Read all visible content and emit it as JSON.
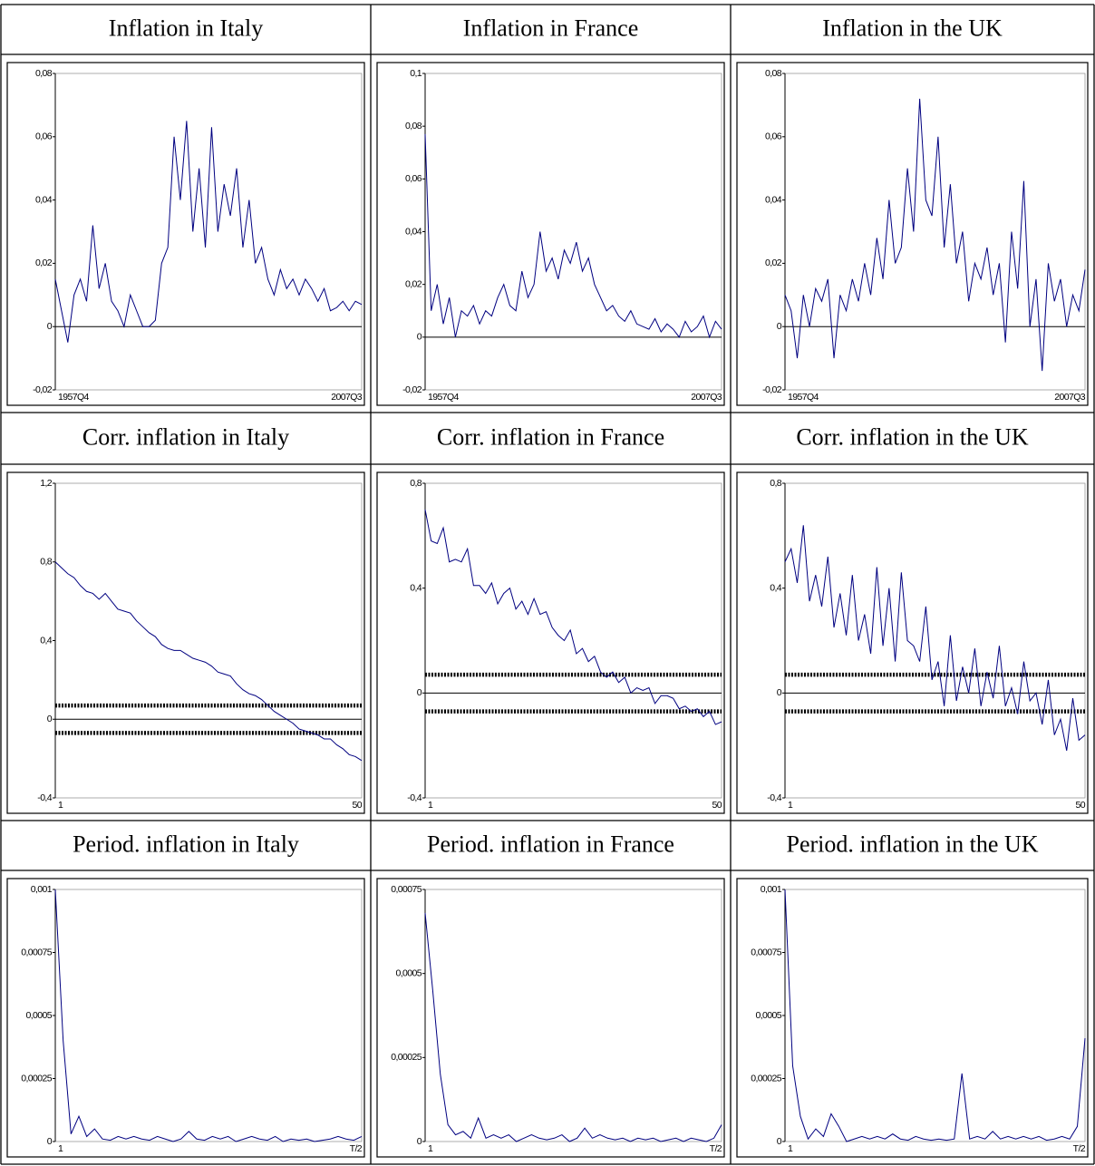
{
  "chart_data": [
    {
      "type": "line",
      "title": "Inflation in Italy",
      "color": "#000080",
      "zero_line": true,
      "ylim": [
        -0.02,
        0.08
      ],
      "yticks": [
        {
          "value": -0.02,
          "label": "-0,02"
        },
        0,
        {
          "value": 0.02,
          "label": "0,02"
        },
        {
          "value": 0.04,
          "label": "0,04"
        },
        {
          "value": 0.06,
          "label": "0,06"
        },
        {
          "value": 0.08,
          "label": "0,08"
        }
      ],
      "categories": [
        "1957Q4",
        null,
        null,
        null,
        null,
        null,
        null,
        null,
        null,
        null,
        null,
        null,
        null,
        null,
        null,
        null,
        null,
        null,
        null,
        null,
        null,
        null,
        null,
        null,
        null,
        null,
        null,
        null,
        null,
        null,
        null,
        null,
        null,
        null,
        null,
        null,
        null,
        null,
        null,
        null,
        null,
        null,
        null,
        null,
        null,
        null,
        null,
        null,
        null,
        "2007Q3"
      ],
      "values": [
        0.015,
        0.005,
        -0.005,
        0.01,
        0.015,
        0.008,
        0.032,
        0.012,
        0.02,
        0.008,
        0.005,
        0.0,
        0.01,
        0.005,
        0.0,
        0.0,
        0.002,
        0.02,
        0.025,
        0.06,
        0.04,
        0.065,
        0.03,
        0.05,
        0.025,
        0.063,
        0.03,
        0.045,
        0.035,
        0.05,
        0.025,
        0.04,
        0.02,
        0.025,
        0.015,
        0.01,
        0.018,
        0.012,
        0.015,
        0.01,
        0.015,
        0.012,
        0.008,
        0.012,
        0.005,
        0.006,
        0.008,
        0.005,
        0.008,
        0.007
      ]
    },
    {
      "type": "line",
      "title": "Inflation in France",
      "color": "#000080",
      "zero_line": true,
      "ylim": [
        -0.02,
        0.1
      ],
      "yticks": [
        {
          "value": -0.02,
          "label": "-0,02"
        },
        0,
        {
          "value": 0.02,
          "label": "0,02"
        },
        {
          "value": 0.04,
          "label": "0,04"
        },
        {
          "value": 0.06,
          "label": "0,06"
        },
        {
          "value": 0.08,
          "label": "0,08"
        },
        {
          "value": 0.1,
          "label": "0,1"
        }
      ],
      "categories": [
        "1957Q4",
        null,
        null,
        null,
        null,
        null,
        null,
        null,
        null,
        null,
        null,
        null,
        null,
        null,
        null,
        null,
        null,
        null,
        null,
        null,
        null,
        null,
        null,
        null,
        null,
        null,
        null,
        null,
        null,
        null,
        null,
        null,
        null,
        null,
        null,
        null,
        null,
        null,
        null,
        null,
        null,
        null,
        null,
        null,
        null,
        null,
        null,
        null,
        null,
        "2007Q3"
      ],
      "values": [
        0.077,
        0.01,
        0.02,
        0.005,
        0.015,
        0.0,
        0.01,
        0.008,
        0.012,
        0.005,
        0.01,
        0.008,
        0.015,
        0.02,
        0.012,
        0.01,
        0.025,
        0.015,
        0.02,
        0.04,
        0.025,
        0.03,
        0.022,
        0.033,
        0.028,
        0.036,
        0.025,
        0.03,
        0.02,
        0.015,
        0.01,
        0.012,
        0.008,
        0.006,
        0.01,
        0.005,
        0.004,
        0.003,
        0.007,
        0.002,
        0.005,
        0.003,
        0.0,
        0.006,
        0.002,
        0.004,
        0.008,
        0.0,
        0.006,
        0.003
      ]
    },
    {
      "type": "line",
      "title": "Inflation in the UK",
      "color": "#000080",
      "zero_line": true,
      "ylim": [
        -0.02,
        0.08
      ],
      "yticks": [
        {
          "value": -0.02,
          "label": "-0,02"
        },
        0,
        {
          "value": 0.02,
          "label": "0,02"
        },
        {
          "value": 0.04,
          "label": "0,04"
        },
        {
          "value": 0.06,
          "label": "0,06"
        },
        {
          "value": 0.08,
          "label": "0,08"
        }
      ],
      "categories": [
        "1957Q4",
        null,
        null,
        null,
        null,
        null,
        null,
        null,
        null,
        null,
        null,
        null,
        null,
        null,
        null,
        null,
        null,
        null,
        null,
        null,
        null,
        null,
        null,
        null,
        null,
        null,
        null,
        null,
        null,
        null,
        null,
        null,
        null,
        null,
        null,
        null,
        null,
        null,
        null,
        null,
        null,
        null,
        null,
        null,
        null,
        null,
        null,
        null,
        null,
        "2007Q3"
      ],
      "values": [
        0.01,
        0.005,
        -0.01,
        0.01,
        0.0,
        0.012,
        0.008,
        0.015,
        -0.01,
        0.01,
        0.005,
        0.015,
        0.008,
        0.02,
        0.01,
        0.028,
        0.015,
        0.04,
        0.02,
        0.025,
        0.05,
        0.03,
        0.072,
        0.04,
        0.035,
        0.06,
        0.025,
        0.045,
        0.02,
        0.03,
        0.008,
        0.02,
        0.015,
        0.025,
        0.01,
        0.02,
        -0.005,
        0.03,
        0.012,
        0.046,
        0.0,
        0.015,
        -0.014,
        0.02,
        0.008,
        0.015,
        0.0,
        0.01,
        0.005,
        0.018
      ]
    },
    {
      "type": "line",
      "title": "Corr. inflation in Italy",
      "color": "#000080",
      "zero_line": true,
      "bands": [
        0.07,
        -0.07
      ],
      "ylim": [
        -0.4,
        1.2
      ],
      "yticks": [
        {
          "value": -0.4,
          "label": "-0,4"
        },
        0,
        {
          "value": 0.4,
          "label": "0,4"
        },
        {
          "value": 0.8,
          "label": "0,8"
        },
        {
          "value": 1.2,
          "label": "1,2"
        }
      ],
      "categories": [
        "1",
        null,
        null,
        null,
        null,
        null,
        null,
        null,
        null,
        null,
        null,
        null,
        null,
        null,
        null,
        null,
        null,
        null,
        null,
        null,
        null,
        null,
        null,
        null,
        null,
        null,
        null,
        null,
        null,
        null,
        null,
        null,
        null,
        null,
        null,
        null,
        null,
        null,
        null,
        null,
        null,
        null,
        null,
        null,
        null,
        null,
        null,
        null,
        null,
        "50"
      ],
      "values": [
        0.8,
        0.77,
        0.74,
        0.72,
        0.68,
        0.65,
        0.64,
        0.61,
        0.64,
        0.6,
        0.56,
        0.55,
        0.54,
        0.5,
        0.47,
        0.44,
        0.42,
        0.38,
        0.36,
        0.35,
        0.35,
        0.33,
        0.31,
        0.3,
        0.29,
        0.27,
        0.24,
        0.23,
        0.22,
        0.18,
        0.15,
        0.13,
        0.12,
        0.1,
        0.07,
        0.04,
        0.02,
        0.0,
        -0.02,
        -0.05,
        -0.06,
        -0.07,
        -0.08,
        -0.1,
        -0.1,
        -0.13,
        -0.15,
        -0.18,
        -0.19,
        -0.21
      ]
    },
    {
      "type": "line",
      "title": "Corr. inflation in France",
      "color": "#000080",
      "zero_line": true,
      "bands": [
        0.07,
        -0.07
      ],
      "ylim": [
        -0.4,
        0.8
      ],
      "yticks": [
        {
          "value": -0.4,
          "label": "-0,4"
        },
        0,
        {
          "value": 0.4,
          "label": "0,4"
        },
        {
          "value": 0.8,
          "label": "0,8"
        }
      ],
      "categories": [
        "1",
        null,
        null,
        null,
        null,
        null,
        null,
        null,
        null,
        null,
        null,
        null,
        null,
        null,
        null,
        null,
        null,
        null,
        null,
        null,
        null,
        null,
        null,
        null,
        null,
        null,
        null,
        null,
        null,
        null,
        null,
        null,
        null,
        null,
        null,
        null,
        null,
        null,
        null,
        null,
        null,
        null,
        null,
        null,
        null,
        null,
        null,
        null,
        null,
        "50"
      ],
      "values": [
        0.7,
        0.58,
        0.57,
        0.63,
        0.5,
        0.51,
        0.5,
        0.55,
        0.41,
        0.41,
        0.38,
        0.42,
        0.34,
        0.38,
        0.4,
        0.32,
        0.35,
        0.3,
        0.36,
        0.3,
        0.31,
        0.25,
        0.22,
        0.2,
        0.24,
        0.15,
        0.17,
        0.12,
        0.14,
        0.08,
        0.06,
        0.08,
        0.04,
        0.06,
        0.0,
        0.02,
        0.01,
        0.02,
        -0.04,
        -0.01,
        -0.01,
        -0.02,
        -0.06,
        -0.05,
        -0.07,
        -0.06,
        -0.09,
        -0.07,
        -0.12,
        -0.11
      ]
    },
    {
      "type": "line",
      "title": "Corr. inflation in the UK",
      "color": "#000080",
      "zero_line": true,
      "bands": [
        0.07,
        -0.07
      ],
      "ylim": [
        -0.4,
        0.8
      ],
      "yticks": [
        {
          "value": -0.4,
          "label": "-0,4"
        },
        0,
        {
          "value": 0.4,
          "label": "0,4"
        },
        {
          "value": 0.8,
          "label": "0,8"
        }
      ],
      "categories": [
        "1",
        null,
        null,
        null,
        null,
        null,
        null,
        null,
        null,
        null,
        null,
        null,
        null,
        null,
        null,
        null,
        null,
        null,
        null,
        null,
        null,
        null,
        null,
        null,
        null,
        null,
        null,
        null,
        null,
        null,
        null,
        null,
        null,
        null,
        null,
        null,
        null,
        null,
        null,
        null,
        null,
        null,
        null,
        null,
        null,
        null,
        null,
        null,
        null,
        "50"
      ],
      "values": [
        0.5,
        0.55,
        0.42,
        0.64,
        0.35,
        0.45,
        0.33,
        0.52,
        0.25,
        0.38,
        0.22,
        0.45,
        0.2,
        0.3,
        0.15,
        0.48,
        0.18,
        0.4,
        0.12,
        0.46,
        0.2,
        0.18,
        0.12,
        0.33,
        0.05,
        0.12,
        -0.05,
        0.22,
        -0.03,
        0.1,
        0.0,
        0.17,
        -0.05,
        0.08,
        -0.02,
        0.18,
        -0.05,
        0.02,
        -0.08,
        0.12,
        -0.03,
        0.0,
        -0.12,
        0.05,
        -0.16,
        -0.1,
        -0.22,
        -0.02,
        -0.18,
        -0.16
      ]
    },
    {
      "type": "line",
      "title": "Period. inflation in Italy",
      "color": "#000080",
      "ylim": [
        0,
        0.001
      ],
      "yticks": [
        0,
        {
          "value": 0.00025,
          "label": "0,00025"
        },
        {
          "value": 0.0005,
          "label": "0,0005"
        },
        {
          "value": 0.00075,
          "label": "0,00075"
        },
        {
          "value": 0.001,
          "label": "0,001"
        }
      ],
      "categories": [
        "1",
        null,
        null,
        null,
        null,
        null,
        null,
        null,
        null,
        null,
        null,
        null,
        null,
        null,
        null,
        null,
        null,
        null,
        null,
        null,
        null,
        null,
        null,
        null,
        null,
        null,
        null,
        null,
        null,
        null,
        null,
        null,
        null,
        null,
        null,
        null,
        null,
        null,
        null,
        "T/2"
      ],
      "values": [
        0.001,
        0.0004,
        3e-05,
        0.0001,
        2e-05,
        5e-05,
        1e-05,
        5e-06,
        2e-05,
        1e-05,
        2e-05,
        1e-05,
        5e-06,
        2e-05,
        1e-05,
        0,
        1e-05,
        4e-05,
        1e-05,
        5e-06,
        2e-05,
        1e-05,
        2e-05,
        0,
        1e-05,
        2e-05,
        1e-05,
        5e-06,
        2e-05,
        0,
        1e-05,
        5e-06,
        1e-05,
        0,
        5e-06,
        1e-05,
        2e-05,
        1e-05,
        5e-06,
        2e-05
      ]
    },
    {
      "type": "line",
      "title": "Period. inflation in France",
      "color": "#000080",
      "ylim": [
        0,
        0.00075
      ],
      "yticks": [
        0,
        {
          "value": 0.00025,
          "label": "0,00025"
        },
        {
          "value": 0.0005,
          "label": "0,0005"
        },
        {
          "value": 0.00075,
          "label": "0,00075"
        }
      ],
      "categories": [
        "1",
        null,
        null,
        null,
        null,
        null,
        null,
        null,
        null,
        null,
        null,
        null,
        null,
        null,
        null,
        null,
        null,
        null,
        null,
        null,
        null,
        null,
        null,
        null,
        null,
        null,
        null,
        null,
        null,
        null,
        null,
        null,
        null,
        null,
        null,
        null,
        null,
        null,
        null,
        "T/2"
      ],
      "values": [
        0.00068,
        0.00045,
        0.0002,
        5e-05,
        2e-05,
        3e-05,
        1e-05,
        7e-05,
        1e-05,
        2e-05,
        1e-05,
        2e-05,
        0,
        1e-05,
        2e-05,
        1e-05,
        5e-06,
        1e-05,
        2e-05,
        0,
        1e-05,
        4e-05,
        1e-05,
        2e-05,
        1e-05,
        5e-06,
        1e-05,
        0,
        1e-05,
        5e-06,
        1e-05,
        0,
        5e-06,
        1e-05,
        0,
        1e-05,
        5e-06,
        0,
        1e-05,
        5e-05
      ]
    },
    {
      "type": "line",
      "title": "Period. inflation in the UK",
      "color": "#000080",
      "ylim": [
        0,
        0.001
      ],
      "yticks": [
        0,
        {
          "value": 0.00025,
          "label": "0,00025"
        },
        {
          "value": 0.0005,
          "label": "0,0005"
        },
        {
          "value": 0.00075,
          "label": "0,00075"
        },
        {
          "value": 0.001,
          "label": "0,001"
        }
      ],
      "categories": [
        "1",
        null,
        null,
        null,
        null,
        null,
        null,
        null,
        null,
        null,
        null,
        null,
        null,
        null,
        null,
        null,
        null,
        null,
        null,
        null,
        null,
        null,
        null,
        null,
        null,
        null,
        null,
        null,
        null,
        null,
        null,
        null,
        null,
        null,
        null,
        null,
        null,
        null,
        null,
        "T/2"
      ],
      "values": [
        0.001,
        0.0003,
        0.0001,
        1e-05,
        5e-05,
        2e-05,
        0.00011,
        6e-05,
        0,
        1e-05,
        2e-05,
        1e-05,
        2e-05,
        1e-05,
        3e-05,
        1e-05,
        5e-06,
        2e-05,
        1e-05,
        5e-06,
        1e-05,
        5e-06,
        1e-05,
        0.00027,
        1e-05,
        2e-05,
        1e-05,
        4e-05,
        1e-05,
        2e-05,
        1e-05,
        2e-05,
        1e-05,
        2e-05,
        5e-06,
        1e-05,
        2e-05,
        1e-05,
        6e-05,
        0.00041
      ]
    }
  ]
}
